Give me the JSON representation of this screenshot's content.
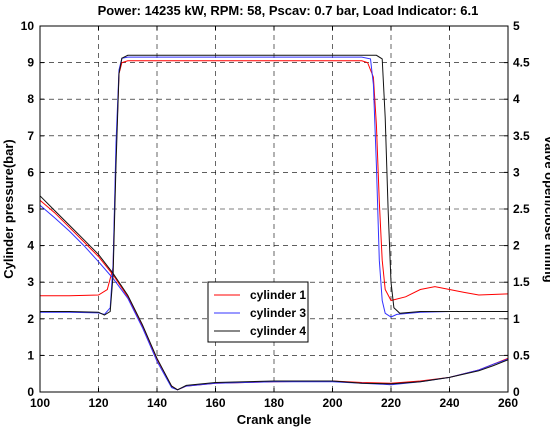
{
  "chart_data": {
    "type": "line",
    "title": "Power: 14235 kW, RPM: 58, Pscav: 0.7 bar, Load Indicator: 6.1",
    "xlabel": "Crank angle",
    "ylabel": "Cylinder pressure(bar)",
    "y2label": "Valve open/close timing",
    "xlim": [
      100,
      260
    ],
    "ylim": [
      0,
      10
    ],
    "y2lim": [
      0,
      5
    ],
    "xticks": [
      "100",
      "120",
      "140",
      "160",
      "180",
      "200",
      "220",
      "240",
      "260"
    ],
    "yticks": [
      "0",
      "1",
      "2",
      "3",
      "4",
      "5",
      "6",
      "7",
      "8",
      "9",
      "10"
    ],
    "y2ticks": [
      "0",
      "0.5",
      "1",
      "1.5",
      "2",
      "2.5",
      "3",
      "3.5",
      "4",
      "4.5",
      "5"
    ],
    "grid": true,
    "legend_position": "center-bottom",
    "series": [
      {
        "name": "cylinder 1",
        "color": "#ff0000",
        "pressure": [
          [
            100,
            2.63
          ],
          [
            110,
            2.63
          ],
          [
            120,
            2.65
          ],
          [
            123,
            2.8
          ],
          [
            125,
            3.4
          ],
          [
            126,
            6.5
          ],
          [
            127,
            8.7
          ],
          [
            128,
            9.0
          ],
          [
            130,
            9.05
          ],
          [
            140,
            9.05
          ],
          [
            160,
            9.05
          ],
          [
            180,
            9.05
          ],
          [
            200,
            9.05
          ],
          [
            210,
            9.05
          ],
          [
            212,
            9.0
          ],
          [
            214,
            8.6
          ],
          [
            215,
            7.3
          ],
          [
            216,
            5.2
          ],
          [
            217,
            3.6
          ],
          [
            218,
            2.8
          ],
          [
            220,
            2.5
          ],
          [
            225,
            2.6
          ],
          [
            230,
            2.8
          ],
          [
            235,
            2.88
          ],
          [
            240,
            2.8
          ],
          [
            245,
            2.72
          ],
          [
            250,
            2.65
          ],
          [
            260,
            2.68
          ]
        ],
        "valve_timing": [
          [
            100,
            2.62
          ],
          [
            105,
            2.45
          ],
          [
            110,
            2.25
          ],
          [
            115,
            2.05
          ],
          [
            120,
            1.85
          ],
          [
            125,
            1.6
          ],
          [
            130,
            1.3
          ],
          [
            135,
            0.9
          ],
          [
            140,
            0.45
          ],
          [
            145,
            0.08
          ],
          [
            147,
            0.03
          ],
          [
            150,
            0.08
          ],
          [
            160,
            0.12
          ],
          [
            180,
            0.14
          ],
          [
            200,
            0.15
          ],
          [
            210,
            0.13
          ],
          [
            220,
            0.12
          ],
          [
            230,
            0.15
          ],
          [
            240,
            0.2
          ],
          [
            250,
            0.3
          ],
          [
            255,
            0.38
          ],
          [
            260,
            0.46
          ]
        ]
      },
      {
        "name": "cylinder 3",
        "color": "#3333ff",
        "pressure": [
          [
            100,
            2.18
          ],
          [
            110,
            2.18
          ],
          [
            120,
            2.16
          ],
          [
            122,
            2.12
          ],
          [
            124,
            2.3
          ],
          [
            125,
            3.5
          ],
          [
            126,
            6.8
          ],
          [
            127,
            8.8
          ],
          [
            128,
            9.12
          ],
          [
            130,
            9.15
          ],
          [
            160,
            9.15
          ],
          [
            180,
            9.15
          ],
          [
            200,
            9.15
          ],
          [
            210,
            9.15
          ],
          [
            213,
            9.1
          ],
          [
            214,
            8.4
          ],
          [
            215,
            6.2
          ],
          [
            216,
            3.6
          ],
          [
            217,
            2.5
          ],
          [
            218,
            2.15
          ],
          [
            220,
            2.05
          ],
          [
            222,
            2.12
          ],
          [
            230,
            2.18
          ],
          [
            240,
            2.2
          ],
          [
            260,
            2.2
          ]
        ],
        "valve_timing": [
          [
            100,
            2.55
          ],
          [
            105,
            2.38
          ],
          [
            110,
            2.2
          ],
          [
            115,
            2.0
          ],
          [
            120,
            1.78
          ],
          [
            125,
            1.55
          ],
          [
            130,
            1.28
          ],
          [
            135,
            0.88
          ],
          [
            140,
            0.42
          ],
          [
            145,
            0.06
          ],
          [
            147,
            0.03
          ],
          [
            150,
            0.08
          ],
          [
            160,
            0.12
          ],
          [
            180,
            0.14
          ],
          [
            200,
            0.14
          ],
          [
            210,
            0.12
          ],
          [
            220,
            0.1
          ],
          [
            230,
            0.14
          ],
          [
            240,
            0.2
          ],
          [
            250,
            0.3
          ],
          [
            255,
            0.38
          ],
          [
            260,
            0.45
          ]
        ]
      },
      {
        "name": "cylinder 4",
        "color": "#111111",
        "pressure": [
          [
            100,
            2.2
          ],
          [
            110,
            2.2
          ],
          [
            120,
            2.18
          ],
          [
            122,
            2.1
          ],
          [
            124,
            2.2
          ],
          [
            125,
            3.2
          ],
          [
            126,
            6.2
          ],
          [
            127,
            8.7
          ],
          [
            128,
            9.12
          ],
          [
            130,
            9.2
          ],
          [
            160,
            9.2
          ],
          [
            180,
            9.2
          ],
          [
            200,
            9.2
          ],
          [
            210,
            9.2
          ],
          [
            215,
            9.2
          ],
          [
            217,
            9.1
          ],
          [
            218,
            7.5
          ],
          [
            219,
            5.0
          ],
          [
            220,
            3.0
          ],
          [
            221,
            2.3
          ],
          [
            223,
            2.15
          ],
          [
            230,
            2.2
          ],
          [
            240,
            2.2
          ],
          [
            260,
            2.2
          ]
        ],
        "valve_timing": [
          [
            100,
            2.68
          ],
          [
            105,
            2.48
          ],
          [
            110,
            2.28
          ],
          [
            115,
            2.08
          ],
          [
            120,
            1.88
          ],
          [
            125,
            1.62
          ],
          [
            130,
            1.32
          ],
          [
            135,
            0.92
          ],
          [
            140,
            0.46
          ],
          [
            145,
            0.08
          ],
          [
            147,
            0.03
          ],
          [
            150,
            0.09
          ],
          [
            160,
            0.13
          ],
          [
            180,
            0.15
          ],
          [
            200,
            0.15
          ],
          [
            210,
            0.12
          ],
          [
            220,
            0.11
          ],
          [
            230,
            0.14
          ],
          [
            240,
            0.2
          ],
          [
            250,
            0.29
          ],
          [
            255,
            0.36
          ],
          [
            260,
            0.44
          ]
        ]
      }
    ]
  }
}
